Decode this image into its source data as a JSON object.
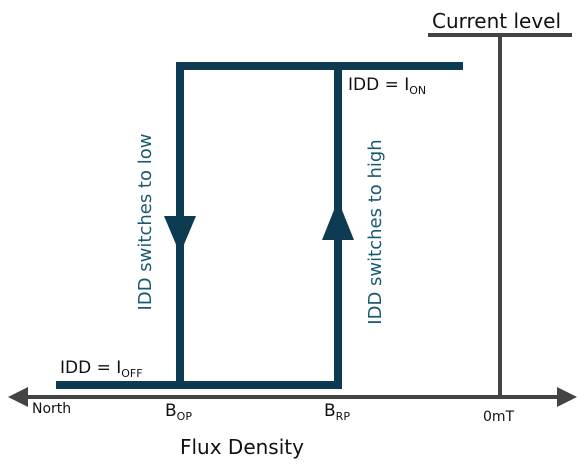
{
  "axis": {
    "y_label": "Current level",
    "x_label": "Flux Density",
    "left_label": "North",
    "zero_label": "0mT"
  },
  "states": {
    "on": {
      "prefix": "IDD = I",
      "subscript": "ON"
    },
    "off": {
      "prefix": "IDD = I",
      "subscript": "OFF"
    }
  },
  "transitions": {
    "to_low": "IDD switches to low",
    "to_high": "IDD switches to high"
  },
  "thresholds": {
    "op": {
      "symbol": "B",
      "subscript": "OP"
    },
    "rp": {
      "symbol": "B",
      "subscript": "RP"
    }
  }
}
